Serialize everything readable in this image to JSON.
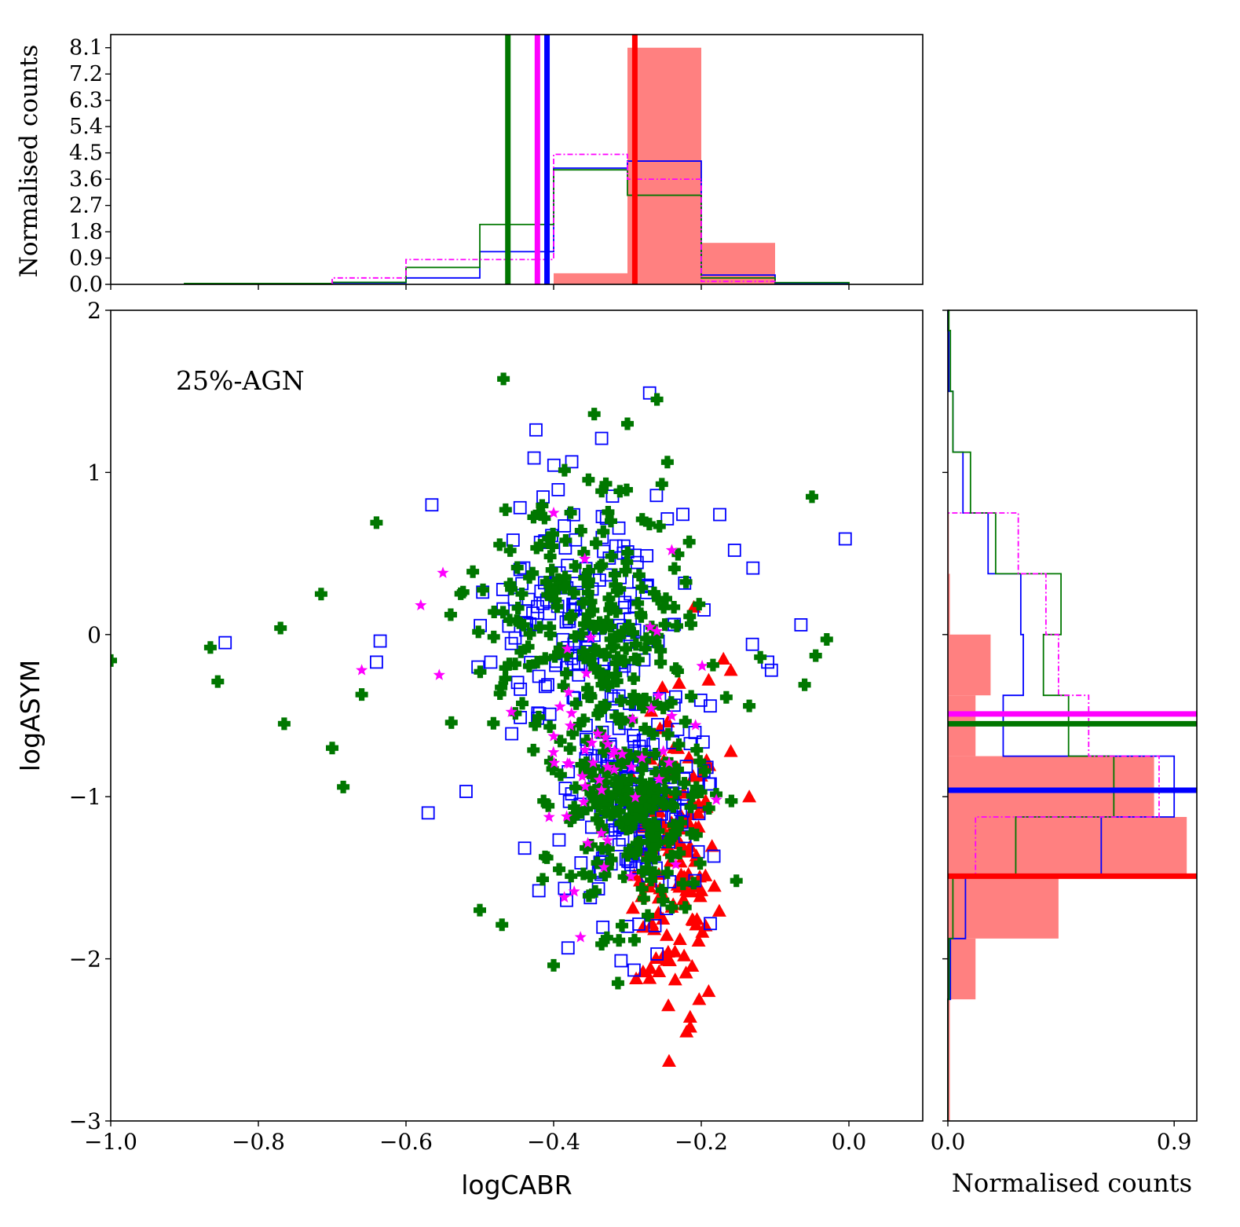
{
  "chart_data": {
    "type": "scatter",
    "annotation": "25%-AGN",
    "colors": {
      "red": "#ff0000",
      "blue": "#0000ff",
      "green": "#007700",
      "magenta": "#ff00ff",
      "fill_red": "#ff8080"
    },
    "main": {
      "xlabel": "logCABR",
      "ylabel": "logASYM",
      "xlim": [
        -1.0,
        0.1
      ],
      "ylim": [
        -3,
        2
      ],
      "xticks": [
        -1.0,
        -0.8,
        -0.6,
        -0.4,
        -0.2,
        0.0
      ],
      "xtick_labels": [
        "−1.0",
        "−0.8",
        "−0.6",
        "−0.4",
        "−0.2",
        "0.0"
      ],
      "yticks": [
        -3,
        -2,
        -1,
        0,
        1,
        2
      ],
      "ytick_labels": [
        "−3",
        "−2",
        "−1",
        "0",
        "1",
        "2"
      ],
      "series": [
        {
          "name": "red-triangles",
          "marker": "triangle",
          "color": "#ff0000",
          "cx": -0.235,
          "cy": -1.45,
          "sx": 0.028,
          "sy": 0.45,
          "n": 130,
          "extra": [
            [
              -0.21,
              0.17
            ],
            [
              -0.19,
              -0.28
            ],
            [
              -0.17,
              -0.15
            ],
            [
              -0.16,
              -0.22
            ],
            [
              -0.22,
              -2.45
            ],
            [
              -0.215,
              -2.42
            ],
            [
              -0.19,
              -2.2
            ],
            [
              -0.27,
              -2.12
            ],
            [
              -0.135,
              -1.0
            ],
            [
              -0.16,
              -0.72
            ],
            [
              -0.23,
              -0.3
            ]
          ]
        },
        {
          "name": "blue-squares",
          "marker": "open-square",
          "color": "#0000ff",
          "cx": -0.31,
          "cy": -0.55,
          "sx": 0.075,
          "sy": 0.65,
          "n": 330,
          "extra": [
            [
              -0.005,
              0.59
            ],
            [
              -0.27,
              1.49
            ],
            [
              -0.335,
              1.21
            ],
            [
              -0.565,
              0.8
            ],
            [
              -0.845,
              -0.05
            ],
            [
              -0.635,
              -0.04
            ],
            [
              -0.64,
              -0.17
            ],
            [
              -0.065,
              0.06
            ],
            [
              -0.105,
              -0.22
            ],
            [
              -0.11,
              -0.17
            ],
            [
              -0.13,
              0.41
            ],
            [
              -0.155,
              0.52
            ],
            [
              -0.175,
              0.74
            ],
            [
              -0.57,
              -1.1
            ],
            [
              -0.42,
              -1.58
            ],
            [
              -0.26,
              -1.97
            ],
            [
              -0.3,
              -1.8
            ]
          ]
        },
        {
          "name": "green-crosses",
          "marker": "filled-plus",
          "color": "#007700",
          "cx": -0.32,
          "cy": -0.45,
          "sx": 0.085,
          "sy": 0.7,
          "n": 430,
          "extra": [
            [
              -1.0,
              -0.16
            ],
            [
              -0.865,
              -0.08
            ],
            [
              -0.855,
              -0.29
            ],
            [
              -0.77,
              0.04
            ],
            [
              -0.765,
              -0.55
            ],
            [
              -0.715,
              0.25
            ],
            [
              -0.7,
              -0.7
            ],
            [
              -0.685,
              -0.94
            ],
            [
              -0.66,
              -0.37
            ],
            [
              -0.64,
              0.69
            ],
            [
              -0.05,
              0.85
            ],
            [
              -0.03,
              -0.03
            ],
            [
              -0.06,
              -0.31
            ],
            [
              -0.045,
              -0.13
            ],
            [
              -0.135,
              -0.44
            ],
            [
              -0.12,
              -0.14
            ],
            [
              -0.5,
              -1.7
            ],
            [
              -0.47,
              -1.79
            ],
            [
              -0.4,
              -2.04
            ],
            [
              -0.335,
              -1.91
            ],
            [
              -0.345,
              1.36
            ],
            [
              -0.3,
              1.3
            ],
            [
              -0.26,
              1.45
            ]
          ]
        },
        {
          "name": "magenta-stars",
          "marker": "star",
          "color": "#ff00ff",
          "cx": -0.33,
          "cy": -0.65,
          "sx": 0.055,
          "sy": 0.45,
          "n": 55,
          "extra": [
            [
              -0.66,
              -0.22
            ],
            [
              -0.55,
              0.38
            ],
            [
              -0.4,
              0.75
            ],
            [
              -0.24,
              0.52
            ],
            [
              -0.555,
              -0.25
            ],
            [
              -0.58,
              0.18
            ],
            [
              -0.26,
              0.02
            ]
          ]
        }
      ]
    },
    "top_hist": {
      "ylabel": "Normalised counts",
      "ylim": [
        0,
        8.55
      ],
      "yticks": [
        0.0,
        0.9,
        1.8,
        2.7,
        3.6,
        4.5,
        5.4,
        6.3,
        7.2,
        8.1
      ],
      "ytick_labels": [
        "0.0",
        "0.9",
        "1.8",
        "2.7",
        "3.6",
        "4.5",
        "5.4",
        "6.3",
        "7.2",
        "8.1"
      ],
      "filled_red": {
        "edges": [
          -0.4,
          -0.3,
          -0.2,
          -0.1
        ],
        "values": [
          0.38,
          8.1,
          1.42
        ]
      },
      "steps": [
        {
          "name": "blue",
          "color": "#0000ff",
          "dash": "",
          "edges": [
            -0.7,
            -0.6,
            -0.5,
            -0.4,
            -0.3,
            -0.2,
            -0.1,
            0.0
          ],
          "values": [
            0.05,
            0.22,
            1.12,
            3.98,
            4.22,
            0.32,
            0.02
          ]
        },
        {
          "name": "green",
          "color": "#007700",
          "dash": "",
          "edges": [
            -0.9,
            -0.7,
            -0.6,
            -0.5,
            -0.4,
            -0.3,
            -0.2,
            -0.1,
            0.0
          ],
          "values": [
            0.03,
            0.07,
            0.58,
            2.05,
            3.92,
            3.05,
            0.22,
            0.06
          ]
        },
        {
          "name": "magenta",
          "color": "#ff00ff",
          "dash": "7,3,2,3",
          "edges": [
            -0.7,
            -0.6,
            -0.5,
            -0.4,
            -0.3,
            -0.2,
            -0.1
          ],
          "values": [
            0.22,
            0.85,
            0.85,
            4.45,
            3.6,
            0.1
          ]
        }
      ],
      "vlines": [
        {
          "color": "#007700",
          "x": -0.462
        },
        {
          "color": "#ff00ff",
          "x": -0.422
        },
        {
          "color": "#0000ff",
          "x": -0.409
        },
        {
          "color": "#ff0000",
          "x": -0.29
        }
      ]
    },
    "right_hist": {
      "xlabel": "Normalised counts",
      "xlim": [
        0,
        0.99
      ],
      "xticks": [
        0.0,
        0.9
      ],
      "xtick_labels": [
        "0.0",
        "0.9"
      ],
      "filled_red": {
        "edges": [
          -3.0,
          -2.25,
          -1.875,
          -1.5,
          -1.125,
          -0.75,
          -0.375,
          0.0,
          0.375,
          0.75,
          1.125,
          1.5,
          1.875
        ],
        "values": [
          0.008,
          0.11,
          0.44,
          0.95,
          0.82,
          0.11,
          0.17,
          0.008,
          0.004,
          0.002,
          0.002,
          0.0
        ]
      },
      "steps": [
        {
          "name": "blue",
          "color": "#0000ff",
          "dash": "",
          "edges": [
            -3.0,
            -2.25,
            -1.875,
            -1.5,
            -1.125,
            -0.75,
            -0.375,
            0.0,
            0.375,
            0.75,
            1.125,
            1.5,
            1.875,
            2.0
          ],
          "values": [
            0.0,
            0.01,
            0.07,
            0.61,
            0.9,
            0.22,
            0.3,
            0.29,
            0.16,
            0.06,
            0.02,
            0.004,
            0.0
          ]
        },
        {
          "name": "green",
          "color": "#007700",
          "dash": "",
          "edges": [
            -3.0,
            -2.25,
            -1.875,
            -1.5,
            -1.125,
            -0.75,
            -0.375,
            0.0,
            0.375,
            0.75,
            1.125,
            1.5,
            1.875,
            2.0
          ],
          "values": [
            0.0,
            0.005,
            0.02,
            0.27,
            0.66,
            0.48,
            0.38,
            0.45,
            0.19,
            0.09,
            0.02,
            0.01,
            0.004
          ]
        },
        {
          "name": "magenta",
          "color": "#ff00ff",
          "dash": "7,3,2,3",
          "edges": [
            -1.5,
            -1.125,
            -0.75,
            -0.375,
            0.0,
            0.375,
            0.75
          ],
          "values": [
            0.11,
            0.84,
            0.56,
            0.44,
            0.39,
            0.28
          ]
        }
      ],
      "hlines": [
        {
          "color": "#ff00ff",
          "y": -0.49
        },
        {
          "color": "#007700",
          "y": -0.55
        },
        {
          "color": "#0000ff",
          "y": -0.96
        },
        {
          "color": "#ff0000",
          "y": -1.49
        }
      ]
    }
  }
}
